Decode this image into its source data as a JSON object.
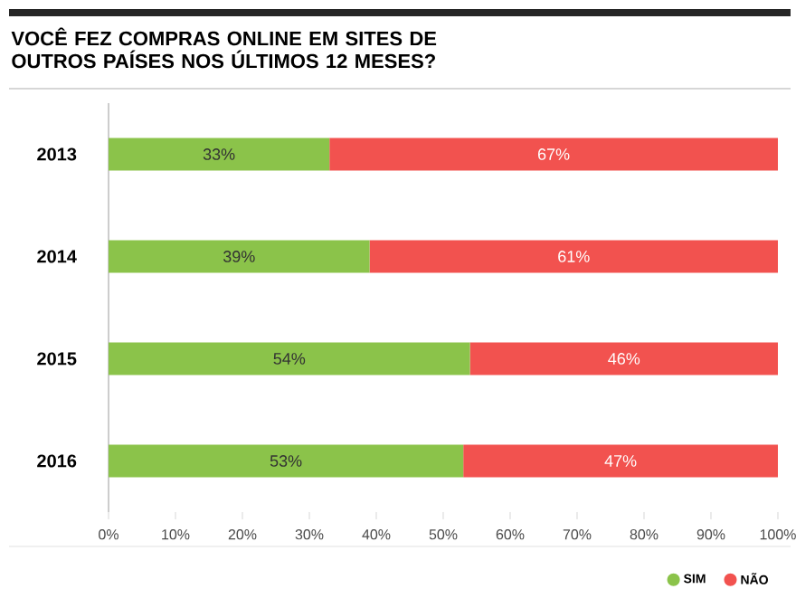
{
  "chart_data": {
    "type": "bar",
    "orientation": "horizontal",
    "stacked": true,
    "title": "VOCÊ FEZ COMPRAS ONLINE EM SITES DE OUTROS PAÍSES NOS ÚLTIMOS 12 MESES?",
    "categories": [
      "2013",
      "2014",
      "2015",
      "2016"
    ],
    "series": [
      {
        "name": "SIM",
        "color": "#8bc34a",
        "values": [
          33,
          39,
          54,
          53
        ],
        "value_labels": [
          "33%",
          "39%",
          "54%",
          "53%"
        ]
      },
      {
        "name": "NÃO",
        "color": "#f2524f",
        "values": [
          67,
          61,
          46,
          47
        ],
        "value_labels": [
          "67%",
          "61%",
          "46%",
          "47%"
        ]
      }
    ],
    "xlim": [
      0,
      100
    ],
    "xticks": [
      {
        "value": 0,
        "label": "0%"
      },
      {
        "value": 10,
        "label": "10%"
      },
      {
        "value": 20,
        "label": "20%"
      },
      {
        "value": 30,
        "label": "30%"
      },
      {
        "value": 40,
        "label": "40%"
      },
      {
        "value": 50,
        "label": "50%"
      },
      {
        "value": 60,
        "label": "60%"
      },
      {
        "value": 70,
        "label": "70%"
      },
      {
        "value": 80,
        "label": "80%"
      },
      {
        "value": 90,
        "label": "90%"
      },
      {
        "value": 100,
        "label": "100%"
      }
    ],
    "grid": false,
    "legend": "bottom right"
  }
}
